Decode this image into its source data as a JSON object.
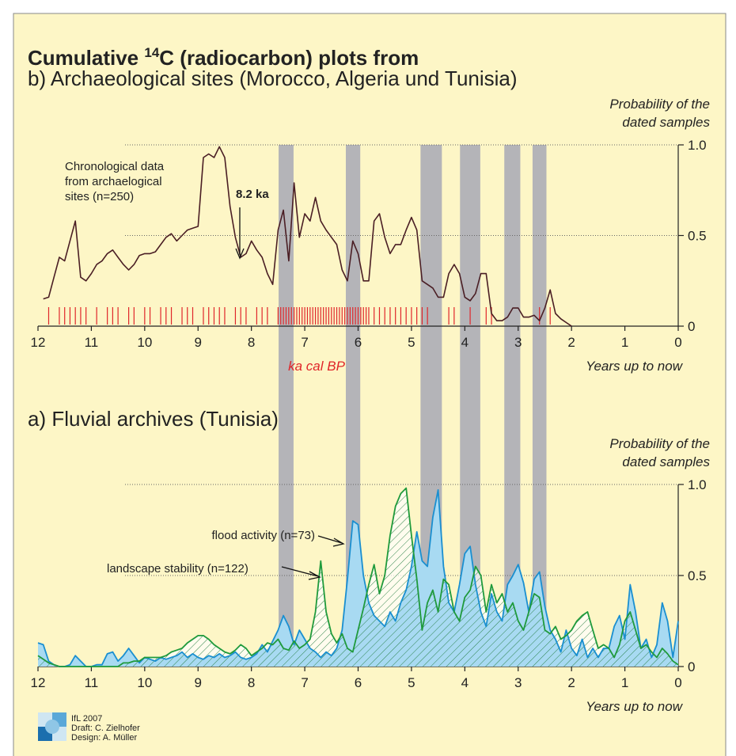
{
  "title_start": "Cumulative ",
  "title_sup": "14",
  "title_end": "C (radiocarbon) plots from",
  "bands": [
    [
      7.49,
      7.21
    ],
    [
      6.23,
      5.96
    ],
    [
      4.83,
      4.43
    ],
    [
      4.09,
      3.71
    ],
    [
      3.26,
      2.96
    ],
    [
      2.73,
      2.47
    ]
  ],
  "credits": [
    "IfL 2007",
    "Draft: C. Zielhofer",
    "Design: A. Müller"
  ],
  "chart_data": [
    {
      "type": "line",
      "title": "b) Archaeological sites (Morocco, Algeria und Tunisia)",
      "y_label": [
        "Probability of the",
        "dated samples"
      ],
      "x_label": "Years up to now",
      "unit_label": "ka cal BP",
      "annotations": [
        "Chronological data",
        "from archaelogical",
        "sites (n=250)",
        "8.2 ka"
      ],
      "xlim": [
        12,
        0
      ],
      "xticks": [
        12,
        11,
        10,
        9,
        8,
        7,
        6,
        5,
        4,
        3,
        2,
        1,
        0
      ],
      "ylim": [
        0,
        1
      ],
      "yticks": [
        0,
        0.5,
        {
          "value": 1,
          "label": "1.0"
        }
      ],
      "grid": true,
      "color": "#4a1e24",
      "dates_color": "#e0262a",
      "x": [
        11.9,
        11.8,
        11.7,
        11.6,
        11.5,
        11.4,
        11.3,
        11.2,
        11.1,
        11.0,
        10.9,
        10.8,
        10.7,
        10.6,
        10.5,
        10.4,
        10.3,
        10.2,
        10.1,
        10.0,
        9.9,
        9.8,
        9.7,
        9.6,
        9.5,
        9.4,
        9.3,
        9.2,
        9.1,
        9.0,
        8.9,
        8.8,
        8.7,
        8.6,
        8.5,
        8.4,
        8.3,
        8.2,
        8.1,
        8.0,
        7.9,
        7.8,
        7.7,
        7.6,
        7.5,
        7.4,
        7.3,
        7.2,
        7.1,
        7.0,
        6.9,
        6.8,
        6.7,
        6.6,
        6.5,
        6.4,
        6.3,
        6.2,
        6.1,
        6.0,
        5.9,
        5.8,
        5.7,
        5.6,
        5.5,
        5.4,
        5.3,
        5.2,
        5.1,
        5.0,
        4.9,
        4.8,
        4.7,
        4.6,
        4.5,
        4.4,
        4.3,
        4.2,
        4.1,
        4.0,
        3.9,
        3.8,
        3.7,
        3.6,
        3.5,
        3.4,
        3.3,
        3.2,
        3.1,
        3.0,
        2.9,
        2.8,
        2.7,
        2.6,
        2.5,
        2.4,
        2.3,
        2.2,
        2.1,
        2.0
      ],
      "values": [
        0.15,
        0.16,
        0.27,
        0.38,
        0.36,
        0.47,
        0.58,
        0.27,
        0.25,
        0.29,
        0.34,
        0.36,
        0.4,
        0.42,
        0.38,
        0.34,
        0.31,
        0.34,
        0.39,
        0.4,
        0.4,
        0.41,
        0.45,
        0.49,
        0.51,
        0.47,
        0.5,
        0.53,
        0.54,
        0.55,
        0.93,
        0.95,
        0.93,
        0.99,
        0.93,
        0.66,
        0.49,
        0.38,
        0.4,
        0.47,
        0.42,
        0.38,
        0.29,
        0.23,
        0.53,
        0.64,
        0.36,
        0.79,
        0.49,
        0.62,
        0.58,
        0.71,
        0.58,
        0.53,
        0.49,
        0.45,
        0.31,
        0.25,
        0.47,
        0.4,
        0.25,
        0.25,
        0.58,
        0.62,
        0.49,
        0.4,
        0.45,
        0.45,
        0.53,
        0.6,
        0.53,
        0.25,
        0.23,
        0.21,
        0.16,
        0.16,
        0.29,
        0.34,
        0.29,
        0.16,
        0.14,
        0.18,
        0.29,
        0.29,
        0.07,
        0.03,
        0.03,
        0.05,
        0.1,
        0.1,
        0.05,
        0.05,
        0.06,
        0.03,
        0.1,
        0.2,
        0.07,
        0.04,
        0.02,
        0.0
      ],
      "dates": [
        11.8,
        11.6,
        11.5,
        11.4,
        11.3,
        11.2,
        11.1,
        10.9,
        10.7,
        10.6,
        10.5,
        10.3,
        10.2,
        10.0,
        9.9,
        9.7,
        9.6,
        9.5,
        9.3,
        9.2,
        9.1,
        8.9,
        8.8,
        8.7,
        8.6,
        8.5,
        8.3,
        8.2,
        8.1,
        7.9,
        7.8,
        7.7,
        7.5,
        7.45,
        7.4,
        7.35,
        7.3,
        7.25,
        7.2,
        7.15,
        7.1,
        7.05,
        7.0,
        6.95,
        6.9,
        6.85,
        6.8,
        6.75,
        6.7,
        6.65,
        6.6,
        6.55,
        6.5,
        6.45,
        6.4,
        6.35,
        6.3,
        6.25,
        6.2,
        6.15,
        6.1,
        6.05,
        6.0,
        5.95,
        5.9,
        5.85,
        5.8,
        5.7,
        5.6,
        5.5,
        5.4,
        5.3,
        5.2,
        5.1,
        5.0,
        4.9,
        4.8,
        4.7,
        4.3,
        4.2,
        3.9,
        3.6,
        3.5,
        2.6,
        2.4
      ]
    },
    {
      "type": "area",
      "title": "a) Fluvial archives (Tunisia)",
      "y_label": [
        "Probability of the",
        "dated samples"
      ],
      "x_label": "Years up to now",
      "xlim": [
        12,
        0
      ],
      "xticks": [
        12,
        11,
        10,
        9,
        8,
        7,
        6,
        5,
        4,
        3,
        2,
        1,
        0
      ],
      "ylim": [
        0,
        1
      ],
      "yticks": [
        0,
        0.5,
        {
          "value": 1,
          "label": "1.0"
        }
      ],
      "grid": true,
      "x": [
        12.0,
        11.9,
        11.8,
        11.7,
        11.6,
        11.5,
        11.4,
        11.3,
        11.2,
        11.1,
        11.0,
        10.9,
        10.8,
        10.7,
        10.6,
        10.5,
        10.4,
        10.3,
        10.2,
        10.1,
        10.0,
        9.9,
        9.8,
        9.7,
        9.6,
        9.5,
        9.4,
        9.3,
        9.2,
        9.1,
        9.0,
        8.9,
        8.8,
        8.7,
        8.6,
        8.5,
        8.4,
        8.3,
        8.2,
        8.1,
        8.0,
        7.9,
        7.8,
        7.7,
        7.6,
        7.5,
        7.4,
        7.3,
        7.2,
        7.1,
        7.0,
        6.9,
        6.8,
        6.7,
        6.6,
        6.5,
        6.4,
        6.3,
        6.2,
        6.1,
        6.0,
        5.9,
        5.8,
        5.7,
        5.6,
        5.5,
        5.4,
        5.3,
        5.2,
        5.1,
        5.0,
        4.9,
        4.8,
        4.7,
        4.6,
        4.5,
        4.4,
        4.3,
        4.2,
        4.1,
        4.0,
        3.9,
        3.8,
        3.7,
        3.6,
        3.5,
        3.4,
        3.3,
        3.2,
        3.1,
        3.0,
        2.9,
        2.8,
        2.7,
        2.6,
        2.5,
        2.4,
        2.3,
        2.2,
        2.1,
        2.0,
        1.9,
        1.8,
        1.7,
        1.6,
        1.5,
        1.4,
        1.3,
        1.2,
        1.1,
        1.0,
        0.9,
        0.8,
        0.7,
        0.6,
        0.5,
        0.4,
        0.3,
        0.2,
        0.1,
        0.0
      ],
      "series": [
        {
          "name": "flood activity (n=73)",
          "color": "#1a8fd0",
          "fill": "#a8daf2",
          "values": [
            0.13,
            0.12,
            0.03,
            0.01,
            0,
            0,
            0.01,
            0.06,
            0.03,
            0,
            0,
            0.01,
            0.01,
            0.07,
            0.08,
            0.03,
            0.06,
            0.1,
            0.06,
            0.02,
            0.05,
            0.04,
            0.03,
            0.05,
            0.04,
            0.05,
            0.06,
            0.08,
            0.05,
            0.07,
            0.05,
            0.04,
            0.06,
            0.05,
            0.07,
            0.05,
            0.06,
            0.08,
            0.05,
            0.04,
            0.05,
            0.07,
            0.12,
            0.08,
            0.14,
            0.2,
            0.28,
            0.22,
            0.12,
            0.2,
            0.15,
            0.1,
            0.08,
            0.05,
            0.08,
            0.06,
            0.1,
            0.2,
            0.48,
            0.8,
            0.78,
            0.5,
            0.35,
            0.28,
            0.25,
            0.22,
            0.3,
            0.25,
            0.35,
            0.42,
            0.55,
            0.74,
            0.58,
            0.55,
            0.82,
            0.97,
            0.55,
            0.35,
            0.3,
            0.45,
            0.62,
            0.66,
            0.45,
            0.3,
            0.22,
            0.4,
            0.3,
            0.25,
            0.45,
            0.5,
            0.56,
            0.46,
            0.3,
            0.48,
            0.52,
            0.33,
            0.2,
            0.15,
            0.08,
            0.2,
            0.1,
            0.06,
            0.15,
            0.05,
            0.1,
            0.05,
            0.1,
            0.1,
            0.22,
            0.28,
            0.15,
            0.45,
            0.3,
            0.1,
            0.15,
            0.05,
            0.12,
            0.35,
            0.25,
            0.05,
            0.25
          ]
        },
        {
          "name": "landscape stability (n=122)",
          "color": "#1f9a3c",
          "fill": "#ffffff",
          "values": [
            0.06,
            0.04,
            0.02,
            0.01,
            0,
            0,
            0,
            0,
            0,
            0,
            0,
            0,
            0,
            0,
            0,
            0,
            0.02,
            0.02,
            0.03,
            0.03,
            0.05,
            0.05,
            0.05,
            0.05,
            0.06,
            0.08,
            0.09,
            0.1,
            0.13,
            0.15,
            0.17,
            0.17,
            0.15,
            0.12,
            0.1,
            0.08,
            0.07,
            0.09,
            0.12,
            0.1,
            0.06,
            0.08,
            0.1,
            0.13,
            0.12,
            0.15,
            0.1,
            0.09,
            0.14,
            0.1,
            0.12,
            0.15,
            0.3,
            0.58,
            0.3,
            0.18,
            0.13,
            0.18,
            0.1,
            0.08,
            0.2,
            0.32,
            0.45,
            0.56,
            0.4,
            0.5,
            0.72,
            0.88,
            0.95,
            0.98,
            0.72,
            0.48,
            0.2,
            0.35,
            0.42,
            0.3,
            0.48,
            0.45,
            0.3,
            0.25,
            0.38,
            0.42,
            0.55,
            0.5,
            0.3,
            0.45,
            0.35,
            0.4,
            0.3,
            0.35,
            0.25,
            0.2,
            0.3,
            0.4,
            0.38,
            0.2,
            0.18,
            0.22,
            0.15,
            0.17,
            0.2,
            0.25,
            0.28,
            0.3,
            0.2,
            0.1,
            0.12,
            0.1,
            0.05,
            0.12,
            0.25,
            0.3,
            0.2,
            0.1,
            0.12,
            0.08,
            0.05,
            0.1,
            0.07,
            0.03,
            0.01
          ]
        }
      ]
    }
  ]
}
